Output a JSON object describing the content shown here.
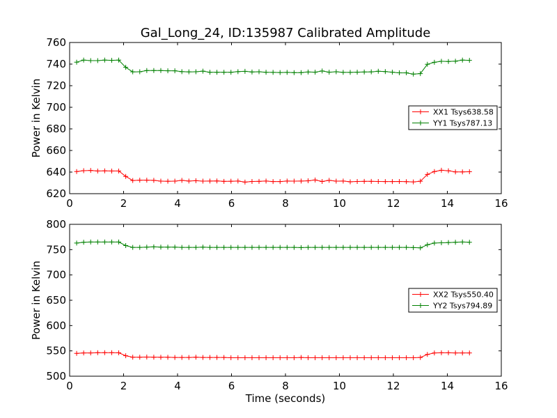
{
  "title": "Gal_Long_24, ID:135987 Calibrated Amplitude",
  "chart_data": [
    {
      "type": "line",
      "ylabel": "Power in Kelvin",
      "xlabel": "",
      "xlim": [
        0,
        16
      ],
      "ylim": [
        620,
        760
      ],
      "xticks": [
        0,
        2,
        4,
        6,
        8,
        10,
        12,
        14,
        16
      ],
      "yticks": [
        620,
        640,
        660,
        680,
        700,
        720,
        740,
        760
      ],
      "legend_position": "center-right",
      "x": [
        0.26,
        0.52,
        0.78,
        1.04,
        1.3,
        1.56,
        1.82,
        2.08,
        2.34,
        2.6,
        2.86,
        3.12,
        3.38,
        3.64,
        3.9,
        4.16,
        4.42,
        4.68,
        4.94,
        5.2,
        5.46,
        5.72,
        5.98,
        6.24,
        6.5,
        6.76,
        7.02,
        7.28,
        7.54,
        7.8,
        8.06,
        8.32,
        8.58,
        8.84,
        9.1,
        9.36,
        9.62,
        9.88,
        10.14,
        10.4,
        10.66,
        10.92,
        11.18,
        11.44,
        11.7,
        11.96,
        12.22,
        12.48,
        12.74,
        13.0,
        13.26,
        13.52,
        13.78,
        14.04,
        14.3,
        14.56,
        14.82
      ],
      "series": [
        {
          "name": "XX1 Tsys638.58",
          "color": "#ff0000",
          "values": [
            640.5,
            641.3,
            641.5,
            641.0,
            641.1,
            641.0,
            641.0,
            636.0,
            632.2,
            632.5,
            632.5,
            632.3,
            631.6,
            631.5,
            631.6,
            632.3,
            631.7,
            632.0,
            631.6,
            631.7,
            631.8,
            631.4,
            631.5,
            631.7,
            630.7,
            631.3,
            631.4,
            631.7,
            631.2,
            631.2,
            631.7,
            631.6,
            631.7,
            631.9,
            632.7,
            631.3,
            632.3,
            631.6,
            631.7,
            631.0,
            631.3,
            631.4,
            631.4,
            631.3,
            631.2,
            631.2,
            631.3,
            631.1,
            630.9,
            631.5,
            637.8,
            640.5,
            641.7,
            641.2,
            640.2,
            640.2,
            640.3
          ]
        },
        {
          "name": "YY1 Tsys787.13",
          "color": "#008000",
          "values": [
            741.8,
            743.7,
            743.2,
            743.2,
            743.7,
            743.5,
            743.7,
            737.0,
            732.8,
            732.9,
            734.0,
            734.0,
            734.0,
            733.8,
            733.8,
            733.0,
            732.8,
            732.9,
            733.5,
            732.4,
            732.4,
            732.4,
            732.4,
            733.0,
            733.3,
            732.7,
            732.9,
            732.4,
            732.3,
            732.2,
            732.3,
            732.1,
            732.1,
            732.7,
            732.5,
            733.6,
            732.5,
            732.9,
            732.3,
            732.3,
            732.5,
            732.7,
            732.8,
            733.4,
            733.1,
            732.5,
            731.9,
            731.9,
            730.7,
            731.2,
            739.8,
            741.7,
            742.6,
            742.4,
            742.7,
            743.7,
            743.5
          ]
        }
      ]
    },
    {
      "type": "line",
      "ylabel": "Power in Kelvin",
      "xlabel": "Time (seconds)",
      "xlim": [
        0,
        16
      ],
      "ylim": [
        500,
        800
      ],
      "xticks": [
        0,
        2,
        4,
        6,
        8,
        10,
        12,
        14,
        16
      ],
      "yticks": [
        500,
        550,
        600,
        650,
        700,
        750,
        800
      ],
      "legend_position": "center-right",
      "x": [
        0.26,
        0.52,
        0.78,
        1.04,
        1.3,
        1.56,
        1.82,
        2.08,
        2.34,
        2.6,
        2.86,
        3.12,
        3.38,
        3.64,
        3.9,
        4.16,
        4.42,
        4.68,
        4.94,
        5.2,
        5.46,
        5.72,
        5.98,
        6.24,
        6.5,
        6.76,
        7.02,
        7.28,
        7.54,
        7.8,
        8.06,
        8.32,
        8.58,
        8.84,
        9.1,
        9.36,
        9.62,
        9.88,
        10.14,
        10.4,
        10.66,
        10.92,
        11.18,
        11.44,
        11.7,
        11.96,
        12.22,
        12.48,
        12.74,
        13.0,
        13.26,
        13.52,
        13.78,
        14.04,
        14.3,
        14.56,
        14.82
      ],
      "series": [
        {
          "name": "XX2 Tsys550.40",
          "color": "#ff0000",
          "values": [
            545.0,
            546.0,
            546.0,
            546.5,
            546.5,
            546.5,
            546.3,
            540.5,
            537.5,
            537.5,
            537.8,
            537.5,
            537.4,
            537.4,
            537.0,
            537.0,
            537.0,
            537.5,
            537.0,
            537.0,
            537.0,
            537.0,
            536.5,
            536.5,
            536.5,
            536.5,
            536.5,
            536.5,
            536.5,
            536.5,
            536.5,
            536.5,
            537.0,
            536.5,
            536.5,
            536.5,
            536.5,
            536.5,
            536.5,
            536.5,
            536.5,
            536.5,
            536.5,
            536.5,
            536.5,
            536.5,
            536.5,
            536.5,
            536.5,
            537.0,
            543.0,
            546.0,
            546.2,
            546.2,
            546.0,
            546.0,
            546.0
          ]
        },
        {
          "name": "YY2 Tsys794.89",
          "color": "#008000",
          "values": [
            763.0,
            764.5,
            765.0,
            765.0,
            765.0,
            765.0,
            765.0,
            758.0,
            754.5,
            754.5,
            755.0,
            755.5,
            755.0,
            755.0,
            755.0,
            754.5,
            754.5,
            754.5,
            755.0,
            754.5,
            754.5,
            754.5,
            754.5,
            754.5,
            754.5,
            754.5,
            754.5,
            754.5,
            754.5,
            754.5,
            754.5,
            754.5,
            754.0,
            754.5,
            754.5,
            754.5,
            754.5,
            754.5,
            754.5,
            754.5,
            754.5,
            754.5,
            754.5,
            754.5,
            754.5,
            754.5,
            754.5,
            754.5,
            754.0,
            753.5,
            759.5,
            763.0,
            763.5,
            764.0,
            764.5,
            765.0,
            764.5
          ]
        }
      ]
    }
  ]
}
